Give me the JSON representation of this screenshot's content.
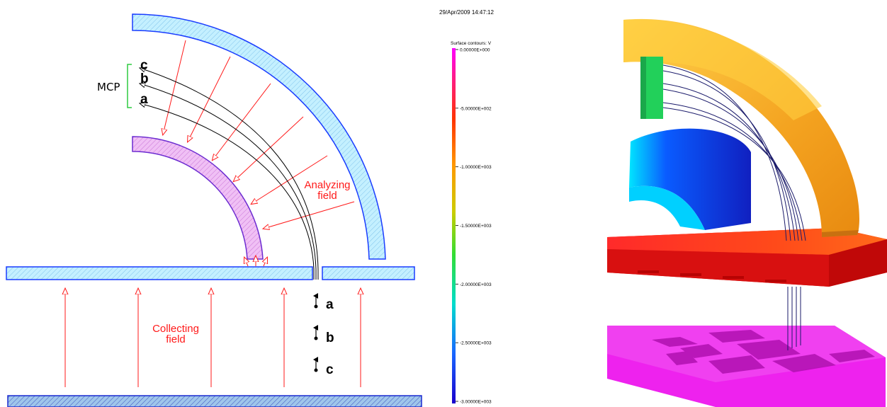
{
  "schematic": {
    "mcp_label": "MCP",
    "trajectory_labels": [
      "c",
      "b",
      "a"
    ],
    "ion_labels": [
      "a",
      "b",
      "c"
    ],
    "analyzing_label_line1": "Analyzing",
    "analyzing_label_line2": "field",
    "collecting_label_line1": "Collecting",
    "collecting_label_line2": "field"
  },
  "colorbar": {
    "timestamp": "29/Apr/2009 14:47:12",
    "title": "Surface contours: V",
    "ticks": [
      "0.00000E+000",
      "-5.00000E+002",
      "-1.00000E+003",
      "-1.50000E+003",
      "-2.00000E+003",
      "-2.50000E+003",
      "-3.00000E+003"
    ]
  },
  "colors": {
    "outer_electrode": "#bfefff",
    "inner_electrode": "#e6a6ee",
    "field_arrow": "#ff1a1a",
    "mcp": "#2ecc40"
  }
}
